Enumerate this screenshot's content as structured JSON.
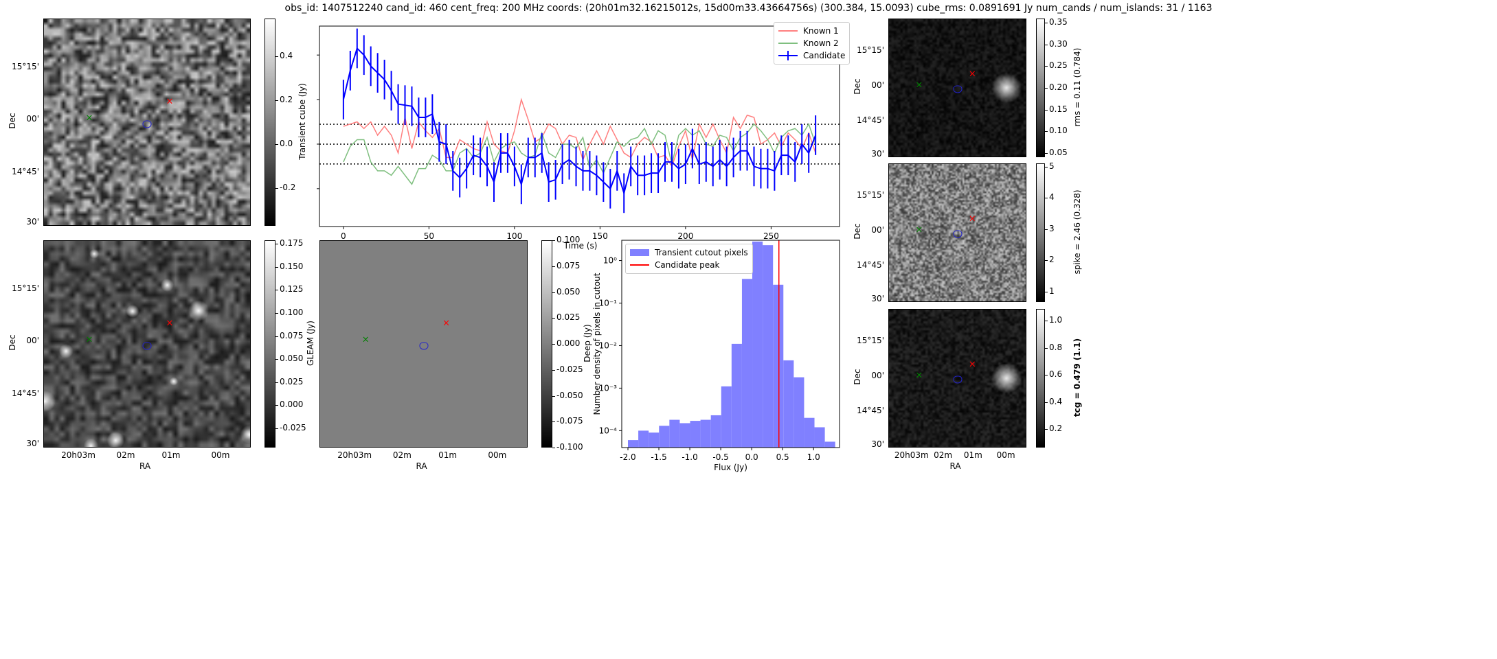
{
  "title": "obs_id: 1407512240 cand_id: 460 cent_freq: 200 MHz coords: (20h01m32.16215012s, 15d00m33.43664756s) (300.384, 15.0093) cube_rms: 0.0891691 Jy num_cands / num_islands: 31 / 1163",
  "axes_labels": {
    "dec": "Dec",
    "ra": "RA"
  },
  "dec_ticks": [
    "15°15'",
    "00'",
    "14°45'",
    "30'"
  ],
  "ra_ticks": [
    "20h03m",
    "02m",
    "01m",
    "00m"
  ],
  "colors": {
    "known1": "#ff7f7f",
    "known2": "#7fbf7f",
    "candidate": "#0000ff",
    "hist": "#8080ff",
    "peak": "#ff0000"
  },
  "images": {
    "cube": {
      "colorbar_label": "Transient cube (Jy)",
      "range": [
        -0.37,
        0.57
      ],
      "ticks": [
        "0.4",
        "0.2",
        "0.0",
        "-0.2"
      ]
    },
    "deep": {
      "colorbar_label": "Deep (Jy)",
      "range": [
        -0.046,
        0.179
      ],
      "ticks": [
        "0.175",
        "0.150",
        "0.125",
        "0.100",
        "0.075",
        "0.050",
        "0.025",
        "0.000",
        "-0.025"
      ]
    },
    "gleam": {
      "colorbar_label": "GLEAM (Jy)",
      "range": [
        -0.1,
        0.1
      ],
      "ticks": [
        "0.100",
        "0.075",
        "0.050",
        "0.025",
        "0.000",
        "-0.025",
        "-0.050",
        "-0.075",
        "-0.100"
      ]
    },
    "rms": {
      "colorbar_label": "rms = 0.11 (0.784)",
      "range": [
        0.04,
        0.36
      ],
      "ticks": [
        "0.35",
        "0.30",
        "0.25",
        "0.20",
        "0.15",
        "0.10",
        "0.05"
      ]
    },
    "spike": {
      "colorbar_label": "spike = 2.46 (0.328)",
      "range": [
        0.67,
        5.1
      ],
      "ticks": [
        "5",
        "4",
        "3",
        "2",
        "1"
      ]
    },
    "tcg": {
      "colorbar_label": "tcg = 0.479 (1.1)",
      "range": [
        0.066,
        1.086
      ],
      "ticks": [
        "1.0",
        "0.8",
        "0.6",
        "0.4",
        "0.2"
      ]
    }
  },
  "chart_data": [
    {
      "type": "line",
      "title": "",
      "xlabel": "Time (s)",
      "ylabel": "Transient cube (Jy)",
      "xlim": [
        -14,
        290
      ],
      "ylim": [
        -0.37,
        0.53
      ],
      "xticks": [
        "0",
        "50",
        "100",
        "150",
        "200",
        "250"
      ],
      "x_step": 4,
      "hlines": [
        0.0891691,
        0.0,
        -0.0891691
      ],
      "legend": {
        "placement": "top-right",
        "entries": [
          "Known 1",
          "Known 2",
          "Candidate"
        ]
      },
      "series": [
        {
          "name": "Known 1",
          "values": [
            0.08,
            0.09,
            0.1,
            0.07,
            0.1,
            0.04,
            0.08,
            0.04,
            -0.04,
            0.12,
            -0.02,
            0.1,
            0.06,
            0.03,
            0.07,
            -0.06,
            -0.06,
            0.02,
            0.0,
            -0.02,
            -0.03,
            0.1,
            0.0,
            -0.03,
            -0.04,
            0.06,
            0.2,
            0.11,
            0.01,
            0.03,
            0.09,
            0.07,
            0.0,
            0.04,
            0.03,
            -0.07,
            0.0,
            0.06,
            0.0,
            0.08,
            0.02,
            -0.04,
            -0.06,
            0.0,
            0.03,
            0.01,
            -0.06,
            -0.05,
            -0.1,
            -0.01,
            0.06,
            -0.07,
            0.09,
            0.03,
            0.09,
            0.02,
            -0.04,
            0.12,
            0.07,
            0.13,
            0.12,
            0.0,
            0.02,
            0.05,
            -0.01,
            0.05,
            0.02,
            -0.02,
            0.05,
            -0.04
          ]
        },
        {
          "name": "Known 2",
          "values": [
            -0.08,
            -0.01,
            0.02,
            0.02,
            -0.08,
            -0.12,
            -0.12,
            -0.14,
            -0.1,
            -0.14,
            -0.18,
            -0.11,
            -0.11,
            -0.05,
            -0.07,
            -0.12,
            -0.12,
            -0.04,
            -0.02,
            -0.06,
            -0.04,
            0.03,
            -0.08,
            -0.02,
            0.0,
            0.01,
            -0.04,
            -0.06,
            -0.05,
            0.05,
            -0.04,
            -0.06,
            0.0,
            0.0,
            -0.02,
            0.03,
            -0.11,
            -0.07,
            -0.13,
            -0.06,
            0.01,
            -0.01,
            0.02,
            0.03,
            0.07,
            0.0,
            0.06,
            0.04,
            -0.09,
            0.04,
            0.07,
            0.04,
            0.06,
            0.0,
            -0.01,
            0.04,
            0.03,
            -0.03,
            0.03,
            0.05,
            0.09,
            0.06,
            0.02,
            -0.04,
            0.03,
            0.06,
            0.07,
            0.04,
            0.09,
            0.0
          ]
        },
        {
          "name": "Candidate",
          "error": 0.089,
          "values": [
            0.2,
            0.33,
            0.43,
            0.4,
            0.35,
            0.32,
            0.29,
            0.24,
            0.18,
            0.175,
            0.17,
            0.12,
            0.12,
            0.135,
            0.01,
            0.0,
            -0.12,
            -0.15,
            -0.11,
            -0.05,
            -0.06,
            -0.1,
            -0.17,
            -0.04,
            -0.04,
            -0.1,
            -0.18,
            -0.06,
            -0.06,
            -0.04,
            -0.17,
            -0.16,
            -0.09,
            -0.07,
            -0.1,
            -0.12,
            -0.12,
            -0.14,
            -0.17,
            -0.2,
            -0.12,
            -0.22,
            -0.1,
            -0.14,
            -0.14,
            -0.13,
            -0.13,
            -0.08,
            -0.08,
            -0.11,
            -0.09,
            -0.02,
            -0.09,
            -0.08,
            -0.1,
            -0.07,
            -0.1,
            -0.06,
            -0.03,
            -0.03,
            -0.1,
            -0.11,
            -0.11,
            -0.12,
            -0.05,
            -0.05,
            -0.08,
            0.0,
            -0.04,
            0.04
          ]
        }
      ]
    },
    {
      "type": "bar",
      "title": "",
      "xlabel": "Flux (Jy)",
      "ylabel": "Number density of pixels in cutout",
      "yscale": "log",
      "xlim": [
        -2.1,
        1.42
      ],
      "ylim": [
        4e-05,
        3.0
      ],
      "xticks": [
        "-2.0",
        "-1.5",
        "-1.0",
        "-0.5",
        "0.0",
        "0.5",
        "1.0"
      ],
      "yticks": [
        "10⁰",
        "10⁻¹",
        "10⁻²",
        "10⁻³",
        "10⁻⁴"
      ],
      "bin_start": -2.0,
      "bin_width": 0.1675,
      "values": [
        6e-05,
        0.0001,
        9e-05,
        0.00013,
        0.00018,
        0.00015,
        0.00017,
        0.00018,
        0.00023,
        0.0011,
        0.011,
        0.37,
        2.8,
        2.3,
        0.27,
        0.0045,
        0.0018,
        0.0002,
        0.00012,
        5.5e-05
      ],
      "candidate_peak": 0.44,
      "legend": {
        "placement": "top-left",
        "entries": [
          "Transient cutout pixels",
          "Candidate peak"
        ]
      }
    }
  ]
}
